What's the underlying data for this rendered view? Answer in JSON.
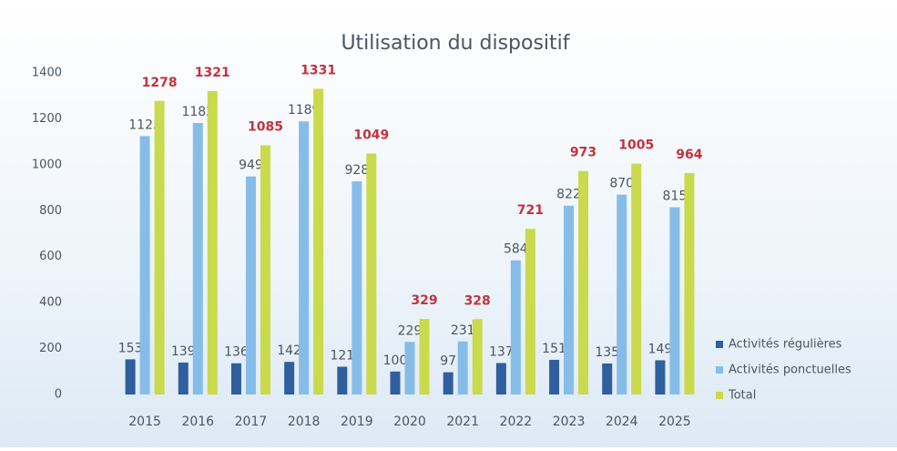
{
  "chart_data": {
    "type": "bar",
    "title": "Utilisation du dispositif",
    "categories": [
      "2015",
      "2016",
      "2017",
      "2018",
      "2019",
      "2020",
      "2021",
      "2022",
      "2023",
      "2024",
      "2025"
    ],
    "series": [
      {
        "name": "Activités régulières",
        "color": "#2f5f9e",
        "label_color": "#4a5560",
        "values": [
          153,
          139,
          136,
          142,
          121,
          100,
          97,
          137,
          151,
          135,
          149
        ]
      },
      {
        "name": "Activités ponctuelles",
        "color": "#86bde8",
        "label_color": "#4a5560",
        "values": [
          1125,
          1182,
          949,
          1189,
          928,
          229,
          231,
          584,
          822,
          870,
          815
        ]
      },
      {
        "name": "Total",
        "color": "#c9da4c",
        "label_color": "#c0343f",
        "values": [
          1278,
          1321,
          1085,
          1331,
          1049,
          329,
          328,
          721,
          973,
          1005,
          964
        ]
      }
    ],
    "ylim": [
      0,
      1400
    ],
    "yticks": [
      0,
      200,
      400,
      600,
      800,
      1000,
      1200,
      1400
    ],
    "grid": false,
    "legend": "right"
  }
}
